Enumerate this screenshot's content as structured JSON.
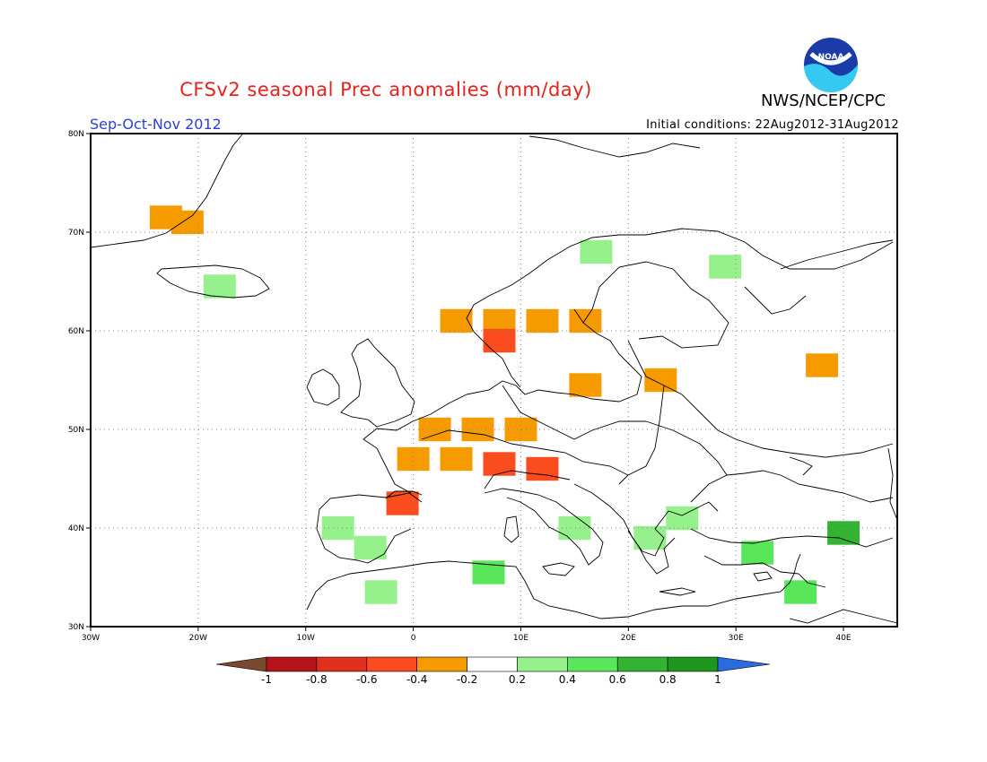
{
  "header": {
    "title": "CFSv2 seasonal Prec anomalies (mm/day)",
    "agency": "NWS/NCEP/CPC",
    "season": "Sep-Oct-Nov 2012",
    "initial_conditions": "Initial conditions: 22Aug2012-31Aug2012",
    "logo_text": "NOAA"
  },
  "map": {
    "lon_range": [
      -30,
      45
    ],
    "lat_range": [
      30,
      80
    ],
    "x_ticks": [
      "30W",
      "20W",
      "10W",
      "0",
      "10E",
      "20E",
      "30E",
      "40E"
    ],
    "y_ticks": [
      "80N",
      "70N",
      "60N",
      "50N",
      "40N",
      "30N"
    ],
    "grid": true,
    "colors": {
      "coast": "#000000",
      "grid": "#888888"
    }
  },
  "legend": {
    "labels": [
      "-1",
      "-0.8",
      "-0.6",
      "-0.4",
      "-0.2",
      "0.2",
      "0.4",
      "0.6",
      "0.8",
      "1"
    ],
    "colors": [
      "#7a4a2e",
      "#b5121b",
      "#e0301e",
      "#fa4c1c",
      "#f59b00",
      "#ffffff",
      "#96f08c",
      "#5ae65a",
      "#32b432",
      "#1e961e",
      "#2a6be0"
    ]
  },
  "chart_data": {
    "type": "heatmap",
    "units": "mm/day",
    "cells": [
      {
        "lon": -23,
        "lat": 71.5,
        "value": -0.3
      },
      {
        "lon": -21,
        "lat": 71,
        "value": -0.3
      },
      {
        "lon": -18,
        "lat": 64.5,
        "value": 0.3
      },
      {
        "lon": 4,
        "lat": 61,
        "value": -0.3
      },
      {
        "lon": 8,
        "lat": 61,
        "value": -0.3
      },
      {
        "lon": 12,
        "lat": 61,
        "value": -0.3
      },
      {
        "lon": 16,
        "lat": 61,
        "value": -0.3
      },
      {
        "lon": 8,
        "lat": 59,
        "value": -0.5
      },
      {
        "lon": 2,
        "lat": 50,
        "value": -0.3
      },
      {
        "lon": 6,
        "lat": 50,
        "value": -0.3
      },
      {
        "lon": 10,
        "lat": 50,
        "value": -0.3
      },
      {
        "lon": 0,
        "lat": 47,
        "value": -0.3
      },
      {
        "lon": 4,
        "lat": 47,
        "value": -0.3
      },
      {
        "lon": 8,
        "lat": 46.5,
        "value": -0.5
      },
      {
        "lon": 12,
        "lat": 46,
        "value": -0.5
      },
      {
        "lon": -1,
        "lat": 42.5,
        "value": -0.5
      },
      {
        "lon": 16,
        "lat": 54.5,
        "value": -0.3
      },
      {
        "lon": 38,
        "lat": 56.5,
        "value": -0.3
      },
      {
        "lon": 23,
        "lat": 55,
        "value": -0.3
      },
      {
        "lon": -7,
        "lat": 40,
        "value": 0.3
      },
      {
        "lon": -4,
        "lat": 38,
        "value": 0.3
      },
      {
        "lon": 7,
        "lat": 35.5,
        "value": 0.5
      },
      {
        "lon": -3,
        "lat": 33.5,
        "value": 0.3
      },
      {
        "lon": 15,
        "lat": 40,
        "value": 0.3
      },
      {
        "lon": 22,
        "lat": 39,
        "value": 0.3
      },
      {
        "lon": 32,
        "lat": 37.5,
        "value": 0.4
      },
      {
        "lon": 40,
        "lat": 39.5,
        "value": 0.6
      },
      {
        "lon": 36,
        "lat": 33.5,
        "value": 0.4
      },
      {
        "lon": 29,
        "lat": 66.5,
        "value": 0.3
      },
      {
        "lon": 17,
        "lat": 68,
        "value": 0.3
      },
      {
        "lon": 25,
        "lat": 41,
        "value": 0.3
      }
    ]
  }
}
